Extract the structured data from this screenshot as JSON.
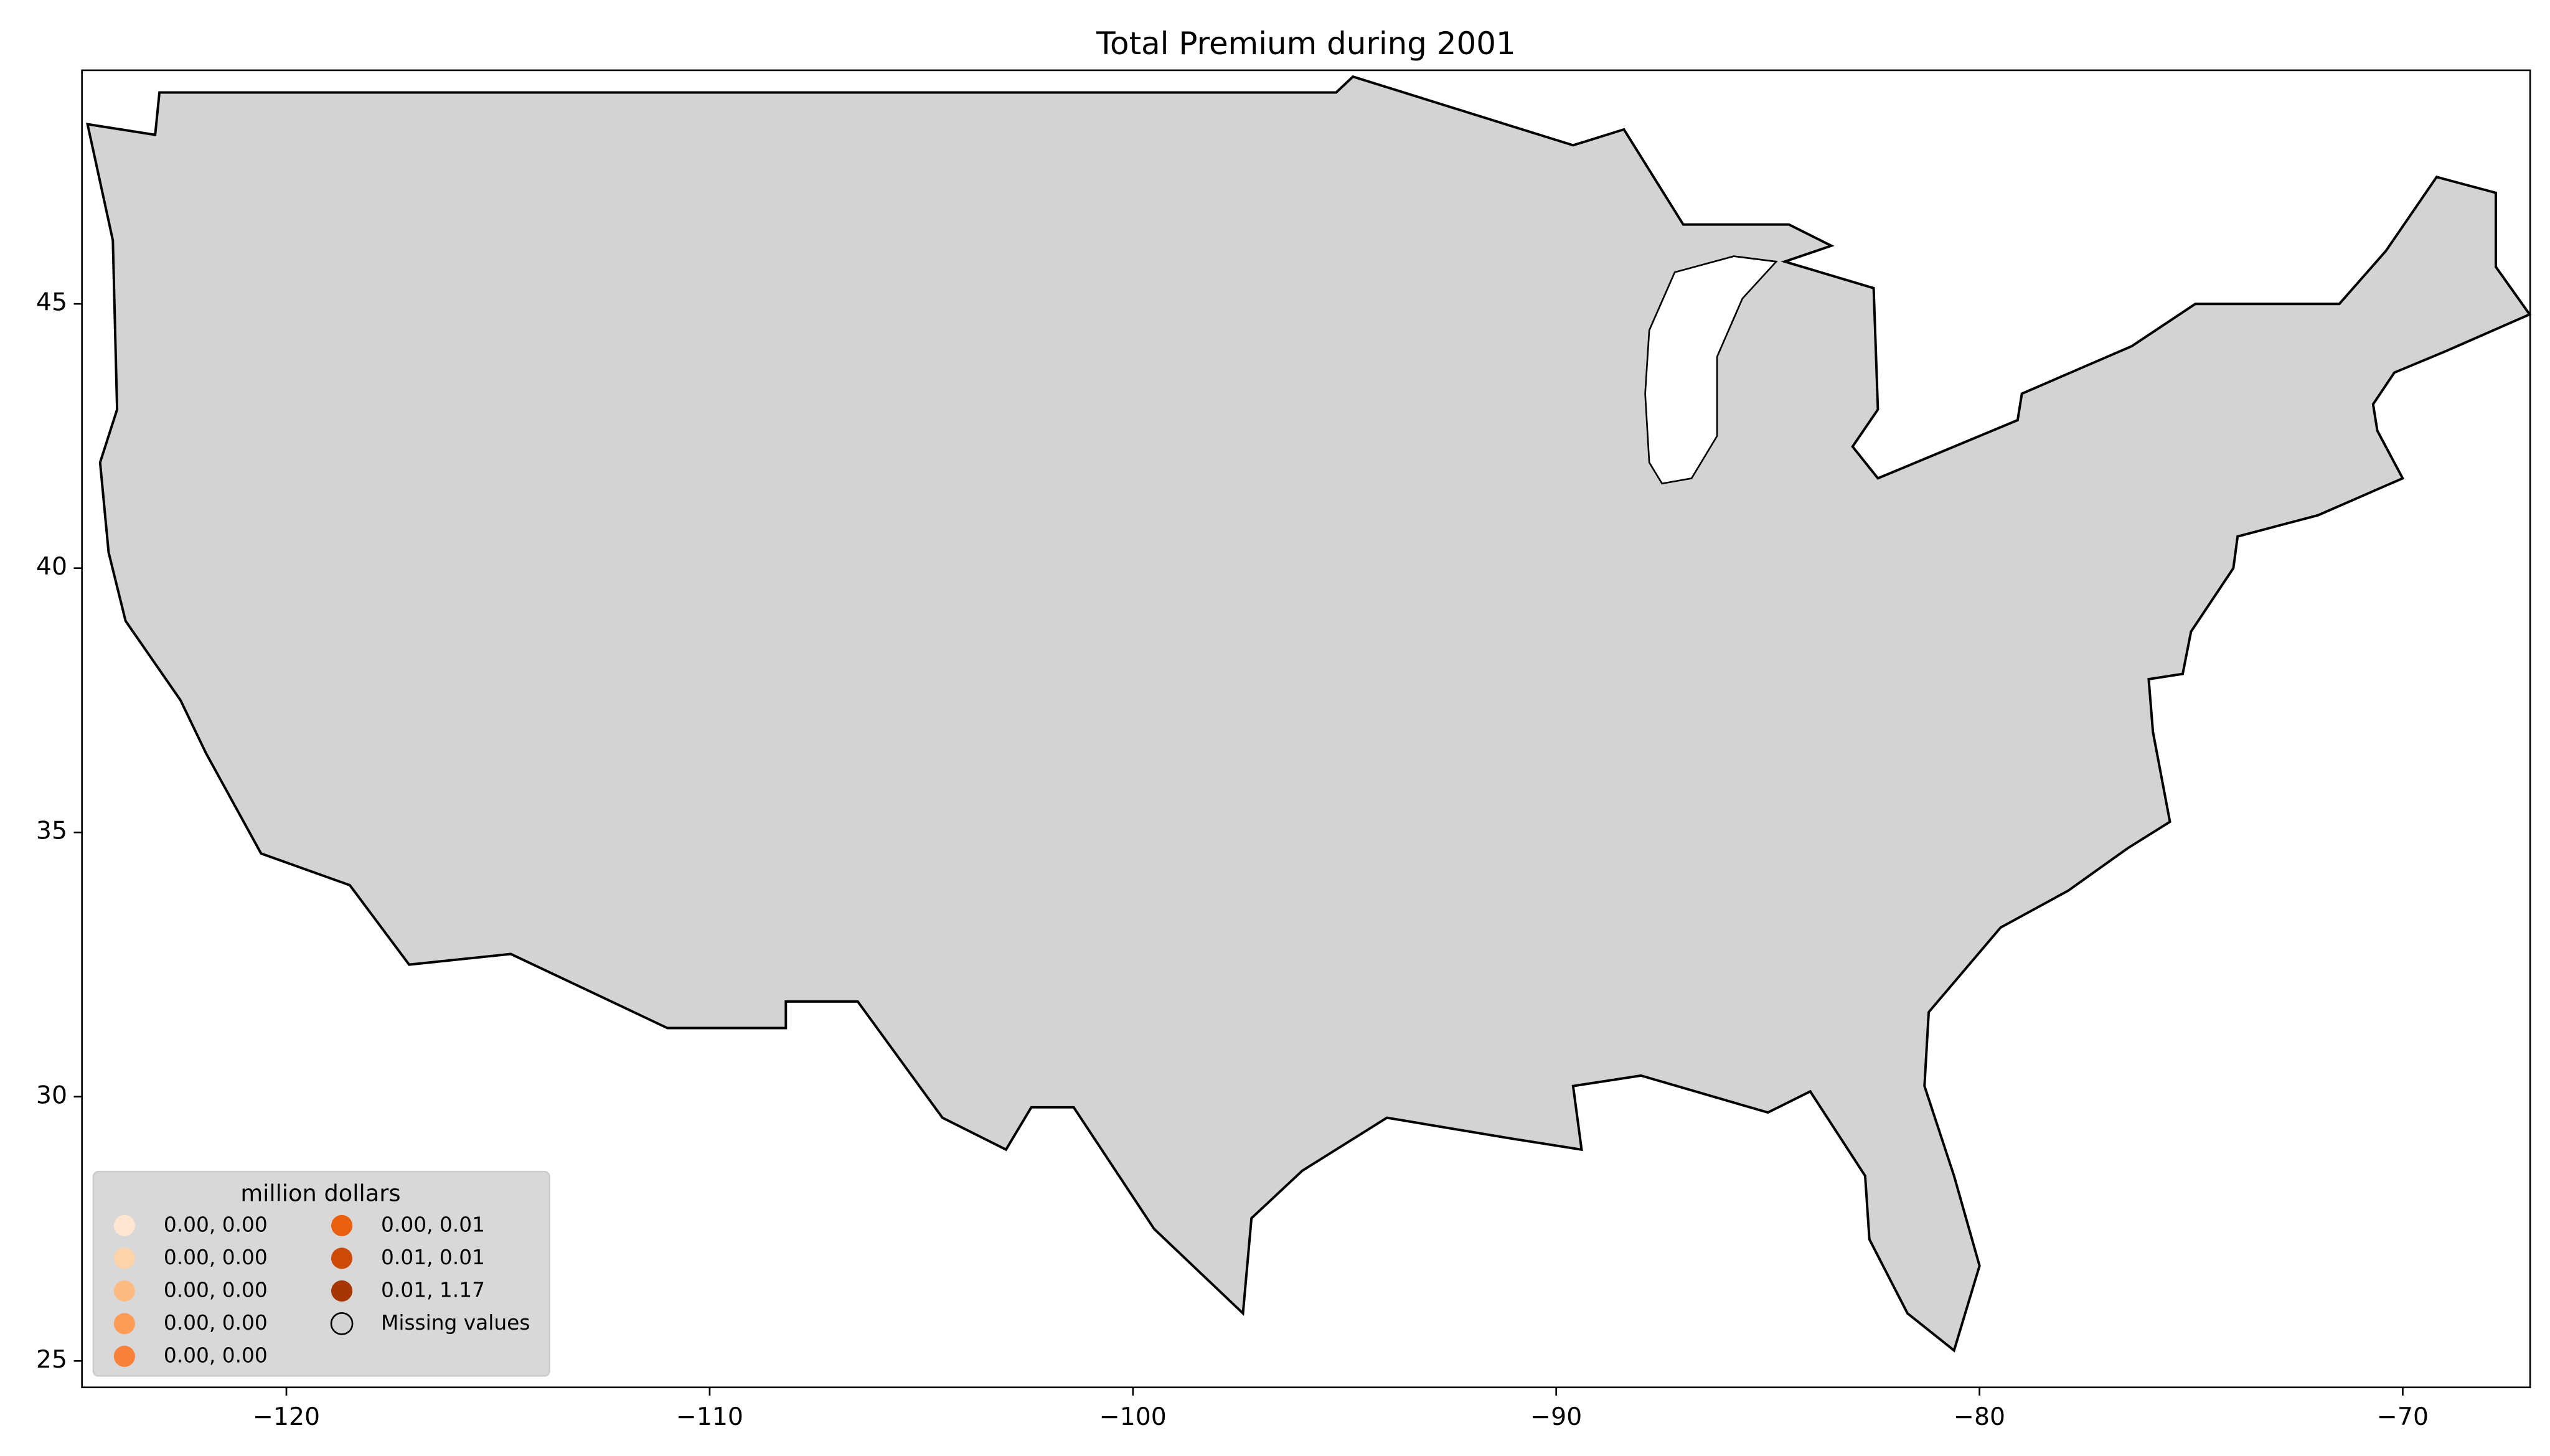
{
  "chart_data": {
    "type": "choropleth",
    "title": "Total  Premium during 2001",
    "xlim": [
      -124.83,
      -66.99
    ],
    "ylim": [
      24.5,
      49.42
    ],
    "xticks": [
      {
        "value": -120,
        "label": "−120"
      },
      {
        "value": -110,
        "label": "−110"
      },
      {
        "value": -100,
        "label": "−100"
      },
      {
        "value": -90,
        "label": "−90"
      },
      {
        "value": -80,
        "label": "−80"
      },
      {
        "value": -70,
        "label": "−70"
      }
    ],
    "yticks": [
      25,
      30,
      35,
      40,
      45
    ],
    "legend": {
      "title": "million dollars",
      "position": "lower left",
      "items": [
        {
          "label": "0.00, 0.00",
          "color": "#fee6d2"
        },
        {
          "label": "0.00, 0.00",
          "color": "#fdd3aa"
        },
        {
          "label": "0.00, 0.00",
          "color": "#fdbb84"
        },
        {
          "label": "0.00, 0.00",
          "color": "#fd9c56"
        },
        {
          "label": "0.00, 0.00",
          "color": "#f9813a"
        },
        {
          "label": "0.00, 0.01",
          "color": "#ea600f"
        },
        {
          "label": "0.01, 0.01",
          "color": "#cc4a06"
        },
        {
          "label": "0.01, 1.17",
          "color": "#a63603"
        },
        {
          "label": "Missing values",
          "color": "#d3d3d3"
        }
      ]
    }
  }
}
